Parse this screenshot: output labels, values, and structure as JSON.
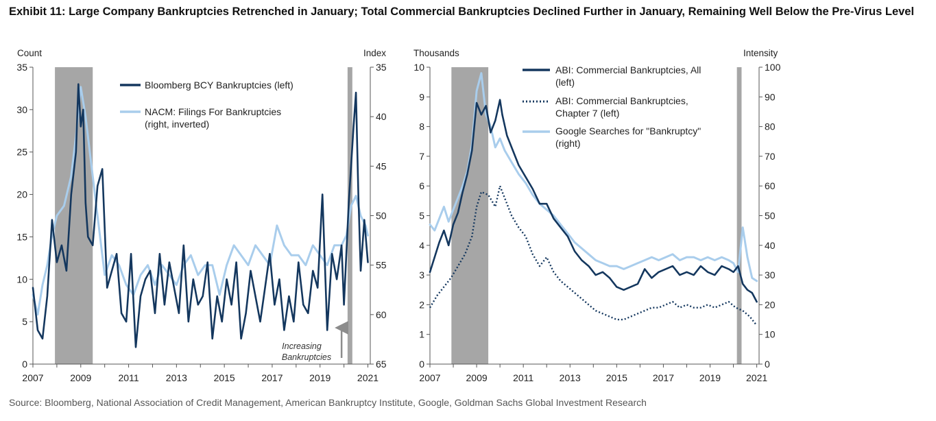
{
  "exhibit_title": "Exhibit 11: Large Company Bankruptcies Retrenched in January; Total Commercial Bankruptcies Declined Further in January, Remaining Well Below the Pre-Virus Level",
  "source": "Source: Bloomberg, National Association of Credit Management, American Bankruptcy Institute, Google, Goldman Sachs Global Investment Research",
  "colors": {
    "dark": "#14375e",
    "light": "#a9cdec",
    "recession": "#a6a6a6",
    "arrow": "#8c8c8c"
  },
  "chart_data": [
    {
      "type": "line",
      "panel": "left",
      "left_axis_label": "Count",
      "right_axis_label": "Index",
      "x_ticks": [
        "2007",
        "2009",
        "2011",
        "2013",
        "2015",
        "2017",
        "2019",
        "2021"
      ],
      "xlim": [
        2007,
        2021.1
      ],
      "left_ylim": [
        0,
        35
      ],
      "left_ticks": [
        "0",
        "5",
        "10",
        "15",
        "20",
        "25",
        "30",
        "35"
      ],
      "right_ylim_inverted": [
        35,
        65
      ],
      "right_ticks": [
        "35",
        "40",
        "45",
        "50",
        "55",
        "60",
        "65"
      ],
      "recessions": [
        [
          2007.92,
          2009.5
        ],
        [
          2020.15,
          2020.35
        ]
      ],
      "annotation": {
        "text_line1": "Increasing",
        "text_line2": "Bankruptcies",
        "x": 2019.9
      },
      "series": [
        {
          "name": "Bloomberg BCY Bankruptcies (left)",
          "axis": "left",
          "style": "solid-dark",
          "x": [
            2007.0,
            2007.2,
            2007.4,
            2007.6,
            2007.8,
            2008.0,
            2008.2,
            2008.4,
            2008.6,
            2008.8,
            2008.9,
            2009.0,
            2009.1,
            2009.2,
            2009.3,
            2009.5,
            2009.7,
            2009.9,
            2010.1,
            2010.3,
            2010.5,
            2010.7,
            2010.9,
            2011.1,
            2011.3,
            2011.5,
            2011.7,
            2011.9,
            2012.1,
            2012.3,
            2012.5,
            2012.7,
            2012.9,
            2013.1,
            2013.3,
            2013.5,
            2013.7,
            2013.9,
            2014.1,
            2014.3,
            2014.5,
            2014.7,
            2014.9,
            2015.1,
            2015.3,
            2015.5,
            2015.7,
            2015.9,
            2016.1,
            2016.3,
            2016.5,
            2016.7,
            2016.9,
            2017.1,
            2017.3,
            2017.5,
            2017.7,
            2017.9,
            2018.1,
            2018.3,
            2018.5,
            2018.7,
            2018.9,
            2019.1,
            2019.3,
            2019.5,
            2019.7,
            2019.9,
            2020.0,
            2020.2,
            2020.4,
            2020.5,
            2020.6,
            2020.7,
            2020.85,
            2021.0
          ],
          "values": [
            9,
            4,
            3,
            8,
            17,
            12,
            14,
            11,
            20,
            25,
            33,
            28,
            30,
            19,
            15,
            14,
            21,
            23,
            9,
            11,
            13,
            6,
            5,
            13,
            2,
            8,
            10,
            11,
            6,
            13,
            7,
            12,
            9,
            6,
            14,
            5,
            10,
            7,
            8,
            12,
            3,
            8,
            5,
            10,
            7,
            12,
            3,
            6,
            11,
            8,
            5,
            9,
            13,
            7,
            10,
            4,
            8,
            5,
            12,
            7,
            6,
            11,
            9,
            20,
            4,
            13,
            10,
            14,
            7,
            19,
            28,
            32,
            20,
            11,
            17,
            12
          ]
        },
        {
          "name": "NACM: Filings For Bankruptcies (right, inverted)",
          "axis": "right",
          "style": "solid-light",
          "x": [
            2007.0,
            2007.2,
            2007.4,
            2007.6,
            2007.8,
            2008.0,
            2008.3,
            2008.6,
            2008.8,
            2009.0,
            2009.2,
            2009.4,
            2009.6,
            2009.8,
            2010.0,
            2010.3,
            2010.6,
            2010.9,
            2011.2,
            2011.5,
            2011.8,
            2012.1,
            2012.4,
            2012.7,
            2013.0,
            2013.3,
            2013.6,
            2013.9,
            2014.2,
            2014.5,
            2014.8,
            2015.1,
            2015.4,
            2015.7,
            2016.0,
            2016.3,
            2016.6,
            2016.9,
            2017.2,
            2017.5,
            2017.8,
            2018.1,
            2018.4,
            2018.7,
            2019.0,
            2019.3,
            2019.6,
            2019.9,
            2020.1,
            2020.3,
            2020.5,
            2020.7,
            2020.9,
            2021.0
          ],
          "values": [
            58,
            60,
            57,
            55,
            52,
            50,
            49,
            46,
            42,
            37,
            40,
            44,
            48,
            52,
            56,
            54,
            55,
            57,
            58,
            56,
            55,
            57,
            55,
            56,
            57,
            55,
            54,
            56,
            55,
            55,
            58,
            55,
            53,
            54,
            55,
            53,
            54,
            55,
            51,
            53,
            54,
            54,
            55,
            53,
            54,
            55,
            53,
            53,
            52,
            49,
            48,
            50,
            51,
            52
          ]
        }
      ]
    },
    {
      "type": "line",
      "panel": "right",
      "left_axis_label": "Thousands",
      "right_axis_label": "Intensity",
      "x_ticks": [
        "2007",
        "2009",
        "2011",
        "2013",
        "2015",
        "2017",
        "2019",
        "2021"
      ],
      "xlim": [
        2007,
        2021.1
      ],
      "left_ylim": [
        0,
        10
      ],
      "left_ticks": [
        "0",
        "1",
        "2",
        "3",
        "4",
        "5",
        "6",
        "7",
        "8",
        "9",
        "10"
      ],
      "right_ylim": [
        0,
        100
      ],
      "right_ticks": [
        "0",
        "10",
        "20",
        "30",
        "40",
        "50",
        "60",
        "70",
        "80",
        "90",
        "100"
      ],
      "recessions": [
        [
          2007.92,
          2009.5
        ],
        [
          2020.15,
          2020.35
        ]
      ],
      "series": [
        {
          "name": "ABI: Commercial Bankruptcies, All (left)",
          "axis": "left",
          "style": "solid-dark",
          "x": [
            2007.0,
            2007.2,
            2007.4,
            2007.6,
            2007.8,
            2008.0,
            2008.2,
            2008.4,
            2008.6,
            2008.8,
            2009.0,
            2009.2,
            2009.4,
            2009.6,
            2009.8,
            2010.0,
            2010.1,
            2010.3,
            2010.5,
            2010.8,
            2011.1,
            2011.4,
            2011.7,
            2012.0,
            2012.3,
            2012.6,
            2012.9,
            2013.2,
            2013.5,
            2013.8,
            2014.1,
            2014.4,
            2014.7,
            2015.0,
            2015.3,
            2015.6,
            2015.9,
            2016.2,
            2016.5,
            2016.8,
            2017.1,
            2017.4,
            2017.7,
            2018.0,
            2018.3,
            2018.6,
            2018.9,
            2019.2,
            2019.5,
            2019.8,
            2020.0,
            2020.2,
            2020.4,
            2020.6,
            2020.8,
            2021.0
          ],
          "values": [
            3.1,
            3.6,
            4.1,
            4.5,
            4.0,
            4.7,
            5.1,
            5.8,
            6.4,
            7.2,
            8.8,
            8.4,
            8.7,
            7.8,
            8.2,
            8.9,
            8.4,
            7.7,
            7.3,
            6.7,
            6.3,
            5.9,
            5.4,
            5.4,
            4.9,
            4.6,
            4.3,
            3.8,
            3.5,
            3.3,
            3.0,
            3.1,
            2.9,
            2.6,
            2.5,
            2.6,
            2.7,
            3.2,
            2.9,
            3.1,
            3.2,
            3.3,
            3.0,
            3.1,
            3.0,
            3.3,
            3.1,
            3.0,
            3.3,
            3.2,
            3.1,
            3.3,
            2.7,
            2.5,
            2.4,
            2.1
          ]
        },
        {
          "name": "ABI: Commercial Bankruptcies, Chapter 7 (left)",
          "axis": "left",
          "style": "dotted-dark",
          "x": [
            2007.0,
            2007.3,
            2007.6,
            2007.9,
            2008.2,
            2008.5,
            2008.8,
            2009.0,
            2009.2,
            2009.5,
            2009.8,
            2010.0,
            2010.2,
            2010.5,
            2010.8,
            2011.1,
            2011.4,
            2011.7,
            2012.0,
            2012.3,
            2012.6,
            2012.9,
            2013.2,
            2013.5,
            2013.8,
            2014.1,
            2014.4,
            2014.7,
            2015.0,
            2015.3,
            2015.6,
            2015.9,
            2016.2,
            2016.5,
            2016.8,
            2017.1,
            2017.4,
            2017.7,
            2018.0,
            2018.3,
            2018.6,
            2018.9,
            2019.2,
            2019.5,
            2019.8,
            2020.1,
            2020.4,
            2020.7,
            2021.0
          ],
          "values": [
            1.9,
            2.3,
            2.6,
            2.9,
            3.3,
            3.7,
            4.3,
            5.3,
            5.8,
            5.7,
            5.3,
            6.0,
            5.6,
            5.0,
            4.6,
            4.3,
            3.7,
            3.3,
            3.6,
            3.1,
            2.8,
            2.6,
            2.4,
            2.2,
            2.0,
            1.8,
            1.7,
            1.6,
            1.5,
            1.5,
            1.6,
            1.7,
            1.8,
            1.9,
            1.9,
            2.0,
            2.1,
            1.9,
            2.0,
            1.9,
            1.9,
            2.0,
            1.9,
            2.0,
            2.1,
            1.9,
            1.8,
            1.6,
            1.3
          ]
        },
        {
          "name": "Google Searches for \"Bankruptcy\" (right)",
          "axis": "right",
          "style": "solid-light",
          "x": [
            2007.0,
            2007.2,
            2007.4,
            2007.6,
            2007.8,
            2008.0,
            2008.2,
            2008.4,
            2008.6,
            2008.8,
            2009.0,
            2009.2,
            2009.4,
            2009.6,
            2009.8,
            2010.0,
            2010.2,
            2010.5,
            2010.8,
            2011.1,
            2011.4,
            2011.7,
            2012.0,
            2012.3,
            2012.6,
            2012.9,
            2013.2,
            2013.5,
            2013.8,
            2014.1,
            2014.4,
            2014.7,
            2015.0,
            2015.3,
            2015.6,
            2015.9,
            2016.2,
            2016.5,
            2016.8,
            2017.1,
            2017.4,
            2017.7,
            2018.0,
            2018.3,
            2018.6,
            2018.9,
            2019.2,
            2019.5,
            2019.8,
            2020.0,
            2020.2,
            2020.4,
            2020.6,
            2020.8,
            2021.0
          ],
          "values": [
            47,
            45,
            49,
            53,
            48,
            52,
            56,
            60,
            65,
            74,
            92,
            98,
            84,
            80,
            73,
            76,
            72,
            68,
            64,
            61,
            57,
            54,
            52,
            50,
            47,
            44,
            41,
            39,
            37,
            35,
            34,
            33,
            33,
            32,
            33,
            34,
            35,
            36,
            35,
            36,
            37,
            35,
            36,
            36,
            35,
            36,
            35,
            36,
            35,
            34,
            31,
            46,
            36,
            29,
            28
          ]
        }
      ]
    }
  ]
}
